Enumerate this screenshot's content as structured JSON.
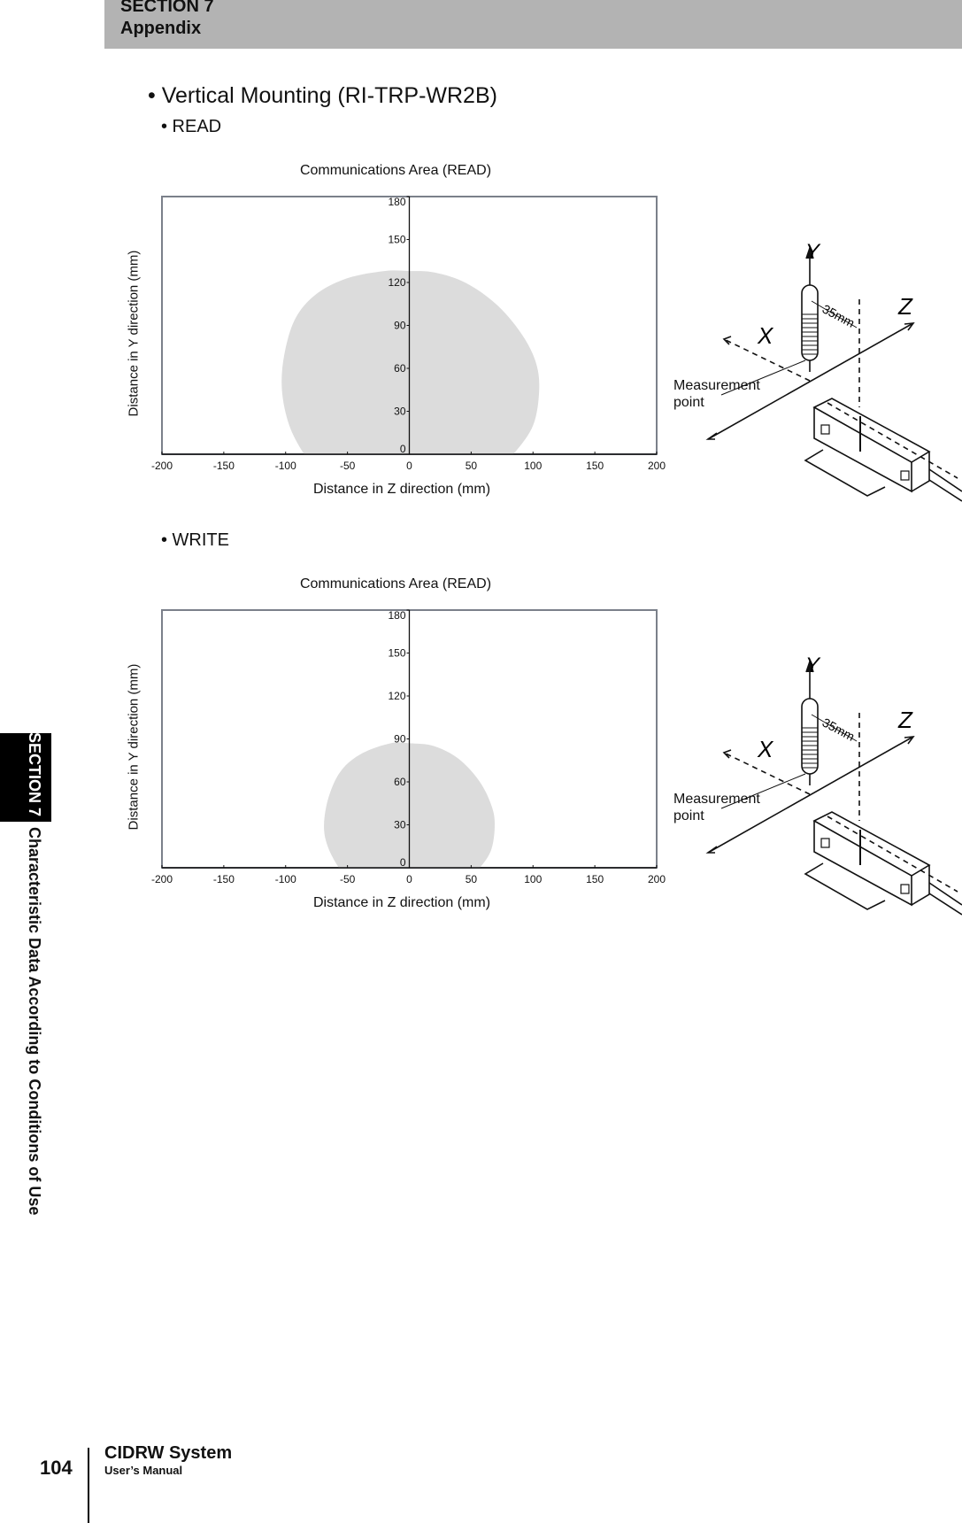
{
  "header": {
    "section": "SECTION 7",
    "title": "Appendix"
  },
  "heading": "• Vertical Mounting (RI-TRP-WR2B)",
  "side_tab": {
    "section": "SECTION 7",
    "chapter": "Characteristic Data According to Conditions of Use"
  },
  "footer": {
    "page": "104",
    "product": "CIDRW System",
    "doc": "User’s Manual"
  },
  "sections": [
    {
      "label": "• READ",
      "diagram": {
        "measurement_label_1": "Measurement",
        "measurement_label_2": "point",
        "distance": "35mm",
        "axis_x": "X",
        "axis_y": "Y",
        "axis_z": "Z"
      }
    },
    {
      "label": "• WRITE",
      "diagram": {
        "measurement_label_1": "Measurement",
        "measurement_label_2": "point",
        "distance": "35mm",
        "axis_x": "X",
        "axis_y": "Y",
        "axis_z": "Z"
      }
    }
  ],
  "chart_data": [
    {
      "type": "area",
      "title": "Communications Area (READ)",
      "xlabel": "Distance in Z direction (mm)",
      "ylabel": "Distance in Y direction (mm)",
      "xlim": [
        -200,
        200
      ],
      "ylim": [
        0,
        180
      ],
      "xticks": [
        -200,
        -150,
        -100,
        -50,
        0,
        50,
        100,
        150,
        200
      ],
      "yticks": [
        0,
        30,
        60,
        90,
        120,
        150,
        180
      ],
      "grid": false,
      "fill_color": "#dcdcdc",
      "boundary": [
        [
          -85,
          0
        ],
        [
          -97,
          20
        ],
        [
          -103,
          45
        ],
        [
          -101,
          70
        ],
        [
          -92,
          95
        ],
        [
          -75,
          112
        ],
        [
          -50,
          123
        ],
        [
          -20,
          128
        ],
        [
          0,
          128
        ],
        [
          20,
          127
        ],
        [
          45,
          120
        ],
        [
          70,
          105
        ],
        [
          90,
          85
        ],
        [
          102,
          65
        ],
        [
          105,
          45
        ],
        [
          100,
          20
        ],
        [
          84,
          0
        ]
      ]
    },
    {
      "type": "area",
      "title": "Communications Area (READ)",
      "xlabel": "Distance in Z direction (mm)",
      "ylabel": "Distance in Y direction (mm)",
      "xlim": [
        -200,
        200
      ],
      "ylim": [
        0,
        180
      ],
      "xticks": [
        -200,
        -150,
        -100,
        -50,
        0,
        50,
        100,
        150,
        200
      ],
      "yticks": [
        0,
        30,
        60,
        90,
        120,
        150,
        180
      ],
      "grid": false,
      "fill_color": "#dcdcdc",
      "boundary": [
        [
          -57,
          0
        ],
        [
          -66,
          15
        ],
        [
          -69,
          30
        ],
        [
          -65,
          50
        ],
        [
          -55,
          68
        ],
        [
          -38,
          80
        ],
        [
          -15,
          87
        ],
        [
          0,
          87
        ],
        [
          20,
          85
        ],
        [
          40,
          76
        ],
        [
          57,
          60
        ],
        [
          67,
          42
        ],
        [
          69,
          28
        ],
        [
          66,
          12
        ],
        [
          57,
          0
        ]
      ]
    }
  ]
}
